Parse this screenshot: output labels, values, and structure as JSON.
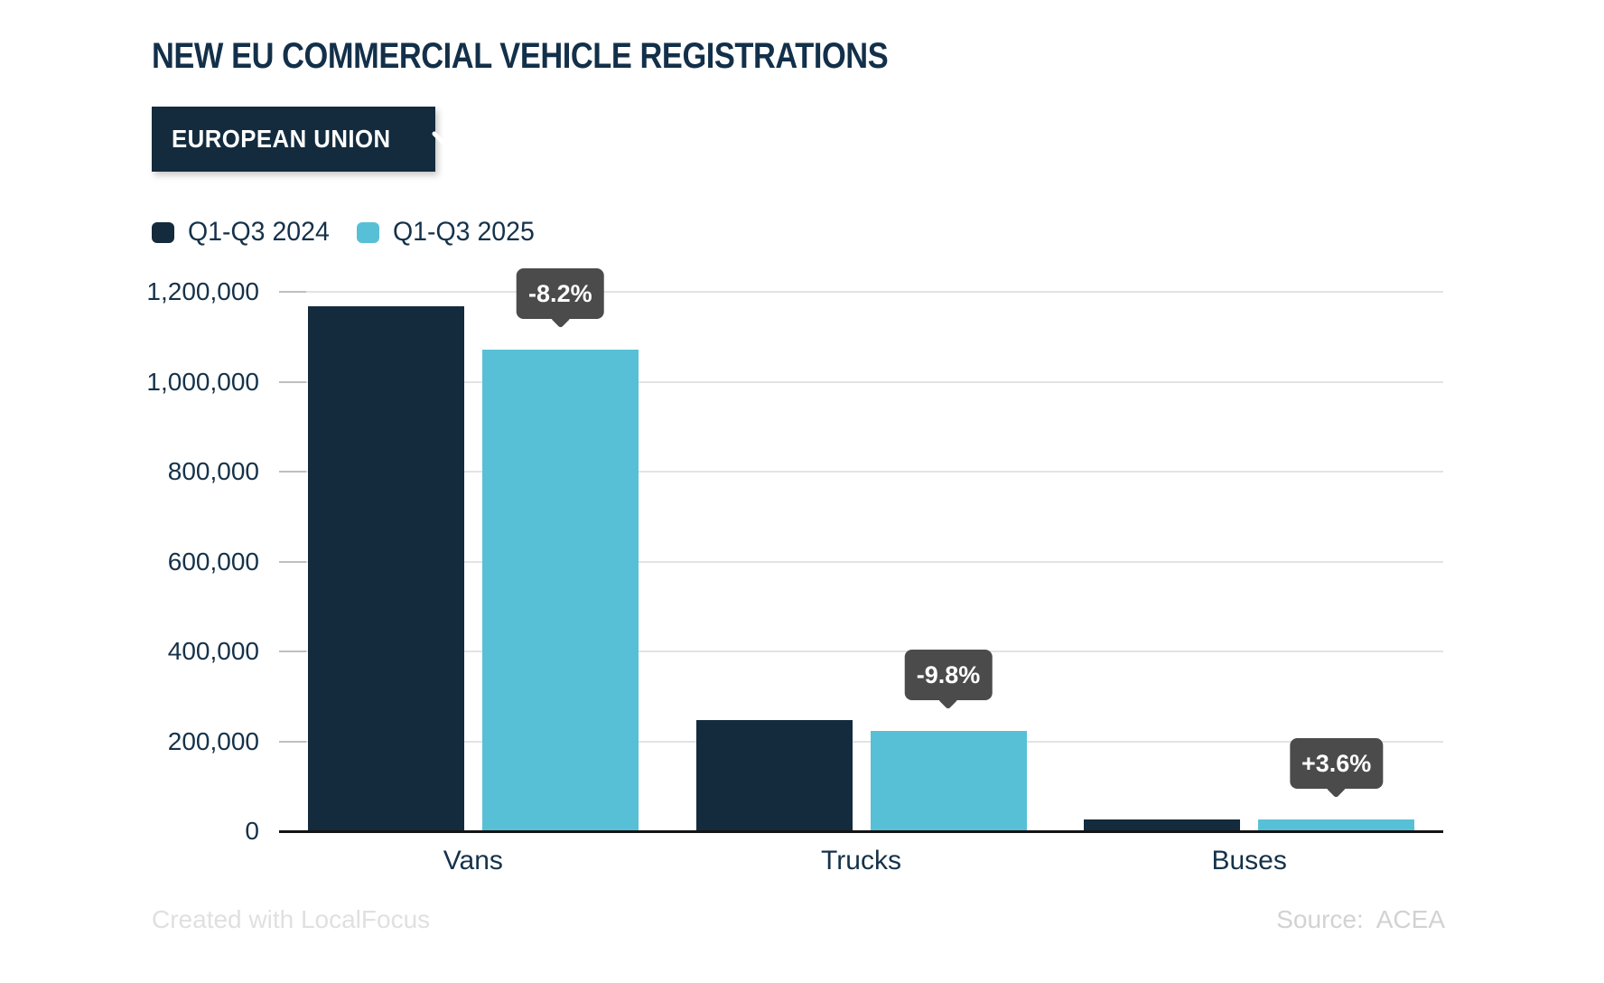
{
  "title": "NEW EU COMMERCIAL VEHICLE REGISTRATIONS",
  "dropdown": {
    "label": "EUROPEAN UNION"
  },
  "legend": {
    "items": [
      {
        "label": "Q1-Q3 2024",
        "color": "#132b3d"
      },
      {
        "label": "Q1-Q3 2025",
        "color": "#58c0d6"
      }
    ]
  },
  "footer": {
    "created": "Created with LocalFocus",
    "source_label": "Source:",
    "source_value": "ACEA"
  },
  "colors": {
    "navy": "#132b3d",
    "cyan": "#58c0d6",
    "text": "#15324a",
    "tooltip_bg": "#4b4b4b",
    "gridline": "#e3e3e3",
    "axis": "#141414"
  },
  "chart_data": {
    "type": "bar",
    "title": "NEW EU COMMERCIAL VEHICLE REGISTRATIONS",
    "categories": [
      "Vans",
      "Trucks",
      "Buses"
    ],
    "series": [
      {
        "name": "Q1-Q3 2024",
        "color": "#132b3d",
        "values": [
          1168000,
          248000,
          26000
        ]
      },
      {
        "name": "Q1-Q3 2025",
        "color": "#58c0d6",
        "values": [
          1072000,
          224000,
          27000
        ]
      }
    ],
    "change_labels": [
      "-8.2%",
      "-9.8%",
      "+3.6%"
    ],
    "xlabel": "",
    "ylabel": "",
    "ylim": [
      0,
      1200000
    ],
    "ytick_values": [
      0,
      200000,
      400000,
      600000,
      800000,
      1000000,
      1200000
    ],
    "ytick_labels": [
      "0",
      "200,000",
      "400,000",
      "600,000",
      "800,000",
      "1,000,000",
      "1,200,000"
    ],
    "grid": "horizontal",
    "legend_position": "top-left"
  }
}
